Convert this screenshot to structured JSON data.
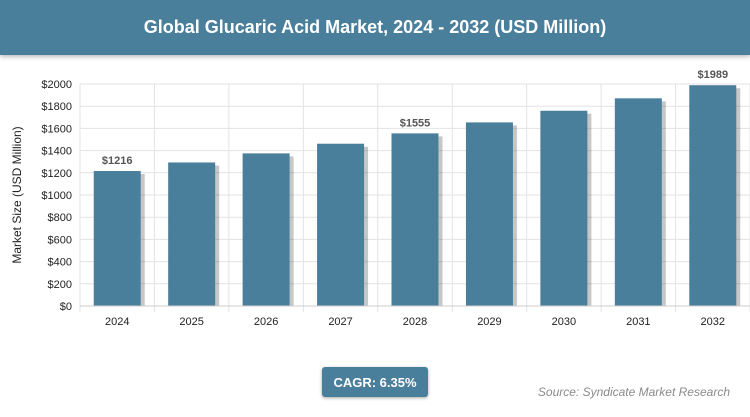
{
  "header": {
    "title": "Global Glucaric Acid Market, 2024 - 2032 (USD Million)"
  },
  "chart_data": {
    "type": "bar",
    "title": "Global Glucaric Acid Market, 2024 - 2032 (USD Million)",
    "xlabel": "",
    "ylabel": "Market Size (USD Million)",
    "categories": [
      "2024",
      "2025",
      "2026",
      "2027",
      "2028",
      "2029",
      "2030",
      "2031",
      "2032"
    ],
    "values": [
      1216,
      1293,
      1375,
      1462,
      1555,
      1654,
      1759,
      1871,
      1989
    ],
    "data_labels": [
      {
        "index": 0,
        "text": "$1216"
      },
      {
        "index": 4,
        "text": "$1555"
      },
      {
        "index": 8,
        "text": "$1989"
      }
    ],
    "ylim": [
      0,
      2000
    ],
    "yticks": [
      0,
      200,
      400,
      600,
      800,
      1000,
      1200,
      1400,
      1600,
      1800,
      2000
    ],
    "ytick_labels": [
      "$0",
      "$200",
      "$400",
      "$600",
      "$800",
      "$1000",
      "$1200",
      "$1400",
      "$1600",
      "$1800",
      "$2000"
    ],
    "grid": true,
    "bar_color": "#4a7f9c"
  },
  "footer": {
    "cagr_label": "CAGR: 6.35%",
    "source": "Source: Syndicate Market Research"
  },
  "colors": {
    "header_bg": "#4a7f9c",
    "badge_bg": "#4a7f9c"
  }
}
